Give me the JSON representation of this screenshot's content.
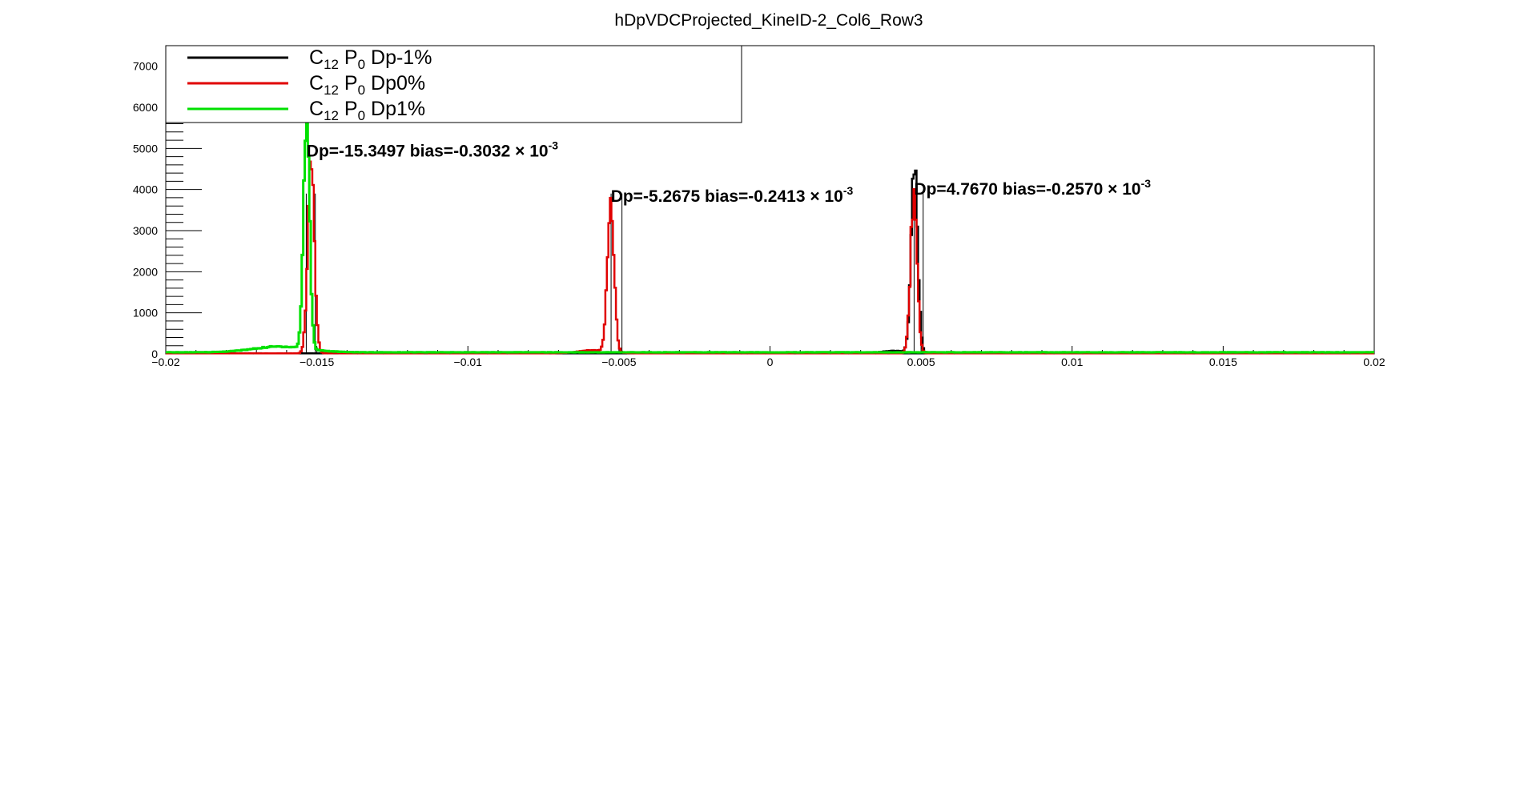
{
  "chart_data": {
    "type": "line",
    "title": "hDpVDCProjected_KineID-2_Col6_Row3",
    "xlabel": "",
    "ylabel": "",
    "xlim": [
      -0.02,
      0.02
    ],
    "ylim": [
      0,
      7500
    ],
    "x_ticks": [
      -0.02,
      -0.015,
      -0.01,
      -0.005,
      0,
      0.005,
      0.01,
      0.015,
      0.02
    ],
    "x_tick_labels": [
      "−0.02",
      "−0.015",
      "−0.01",
      "−0.005",
      "0",
      "0.005",
      "0.01",
      "0.015",
      "0.02"
    ],
    "y_ticks": [
      0,
      1000,
      2000,
      3000,
      4000,
      5000,
      6000,
      7000
    ],
    "y_tick_labels": [
      "0",
      "1000",
      "2000",
      "3000",
      "4000",
      "5000",
      "6000",
      "7000"
    ],
    "legend": {
      "placement": "top-left",
      "entries": [
        {
          "base": "C",
          "sub1": "12",
          "mid": " P",
          "sub2": "0",
          "tail": " Dp-1%",
          "color": "#000000"
        },
        {
          "base": "C",
          "sub1": "12",
          "mid": " P",
          "sub2": "0",
          "tail": " Dp0%",
          "color": "#e00000"
        },
        {
          "base": "C",
          "sub1": "12",
          "mid": " P",
          "sub2": "0",
          "tail": " Dp1%",
          "color": "#00e000"
        }
      ]
    },
    "annotations": [
      {
        "text": "Dp=-15.3497 bias=-0.3032 × 10",
        "sup": "-3",
        "x": -0.01534,
        "y": 4800
      },
      {
        "text": "Dp=-5.2675 bias=-0.2413 × 10",
        "sup": "-3",
        "x": -0.00527,
        "y": 3700
      },
      {
        "text": "Dp=4.7670 bias=-0.2570 × 10",
        "sup": "-3",
        "x": 0.00477,
        "y": 3880
      }
    ],
    "vertical_markers": [
      -0.01535,
      -0.01505,
      -0.00526,
      -0.0049,
      0.00477,
      0.00507
    ],
    "series": [
      {
        "name": "C12 P0 Dp-1%",
        "color": "#000000",
        "peaks": [
          {
            "center": 0.00478,
            "sigma": 0.00011,
            "height": 4400
          },
          {
            "center": 0.0041,
            "sigma": 0.0004,
            "height": 60
          }
        ],
        "baseline": 15
      },
      {
        "name": "C12 P0 Dp0%",
        "color": "#e00000",
        "peaks": [
          {
            "center": -0.01519,
            "sigma": 0.00011,
            "height": 4600
          },
          {
            "center": -0.00527,
            "sigma": 0.00011,
            "height": 3600
          },
          {
            "center": -0.0058,
            "sigma": 0.0005,
            "height": 80
          },
          {
            "center": 0.00476,
            "sigma": 0.00011,
            "height": 3800
          }
        ],
        "baseline": 15
      },
      {
        "name": "C12 P0 Dp1%",
        "color": "#00e000",
        "peaks": [
          {
            "center": -0.01534,
            "sigma": 0.0001,
            "height": 5700
          },
          {
            "center": -0.0162,
            "sigma": 0.0009,
            "height": 140
          }
        ],
        "baseline": 40
      }
    ]
  }
}
